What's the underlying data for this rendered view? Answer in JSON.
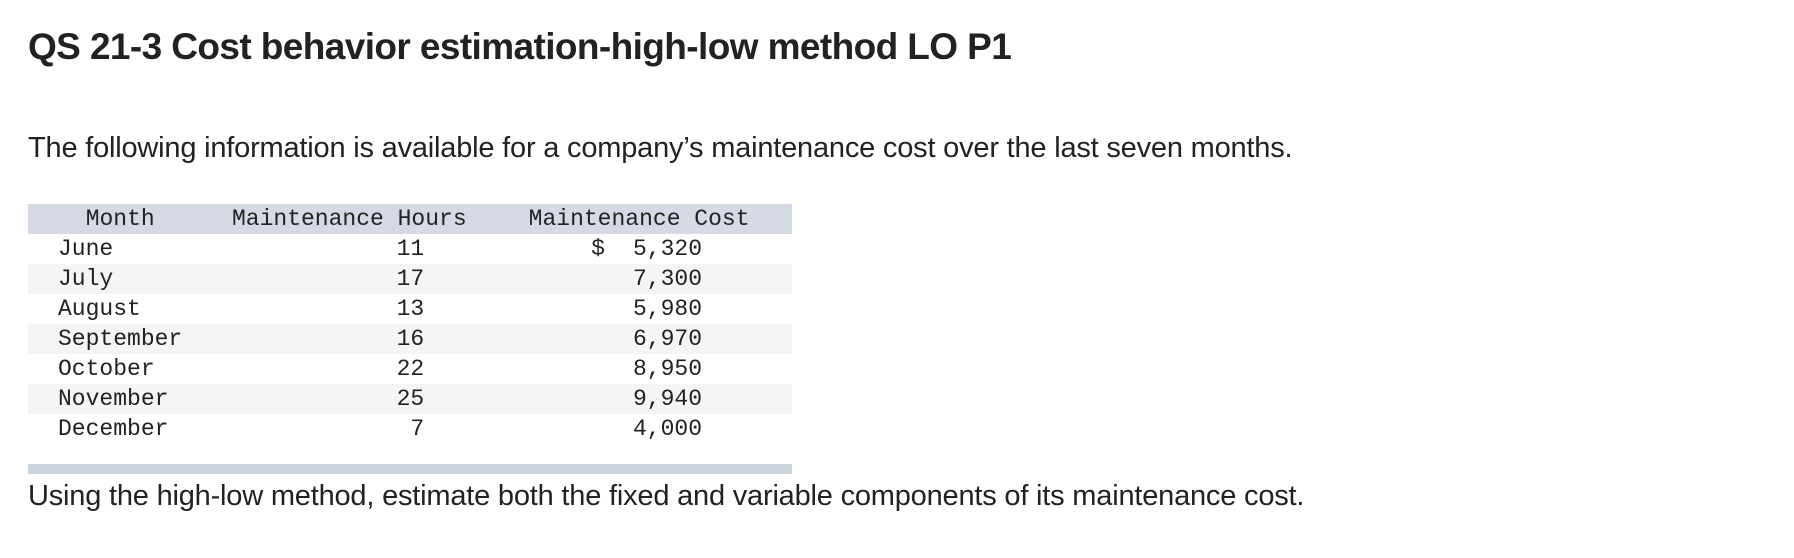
{
  "title": "QS 21-3 Cost behavior estimation-high-low method LO P1",
  "intro": "The following information is available for a company’s maintenance cost over the last seven months.",
  "table": {
    "headers": [
      "Month",
      "Maintenance Hours",
      "Maintenance Cost"
    ],
    "currency_symbol": "$",
    "rows": [
      {
        "month": "June",
        "hours": "11",
        "cost": "5,320"
      },
      {
        "month": "July",
        "hours": "17",
        "cost": "7,300"
      },
      {
        "month": "August",
        "hours": "13",
        "cost": "5,980"
      },
      {
        "month": "September",
        "hours": "16",
        "cost": "6,970"
      },
      {
        "month": "October",
        "hours": "22",
        "cost": "8,950"
      },
      {
        "month": "November",
        "hours": "25",
        "cost": "9,940"
      },
      {
        "month": "December",
        "hours": "7",
        "cost": "4,000"
      }
    ]
  },
  "question": "Using the high-low method, estimate both the fixed and variable components of its maintenance cost.",
  "colors": {
    "header_bg": "#d6dae6",
    "stripe_bg": "#f5f5f5",
    "footer_bar": "#cbd3df",
    "text": "#222222"
  }
}
